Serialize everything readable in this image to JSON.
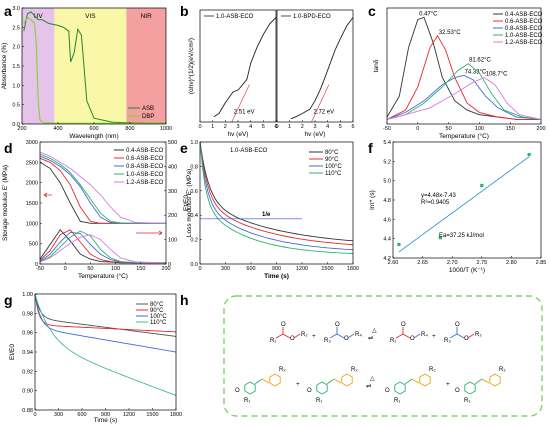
{
  "panel_labels": [
    "a",
    "b",
    "c",
    "d",
    "e",
    "f",
    "g",
    "h"
  ],
  "chart_data": [
    {
      "panel": "a",
      "type": "line",
      "xlabel": "Wavelength (nm)",
      "ylabel": "Absorbance (%)",
      "xlim": [
        200,
        1000
      ],
      "ylim": [
        0,
        3.0
      ],
      "x_ticks": [
        200,
        400,
        600,
        800,
        1000
      ],
      "y_ticks": [
        0.0,
        0.5,
        1.0,
        1.5,
        2.0,
        2.5,
        3.0
      ],
      "regions": [
        {
          "label": "UV",
          "from": 200,
          "to": 380,
          "color": "#e5c3ea"
        },
        {
          "label": "VIS",
          "from": 380,
          "to": 780,
          "color": "#fbf7a9"
        },
        {
          "label": "NIR",
          "from": 780,
          "to": 1000,
          "color": "#f5a0a0"
        }
      ],
      "legend_position": "bottom-right",
      "series": [
        {
          "name": "ASB",
          "color": "#1f8a2c",
          "x": [
            210,
            230,
            250,
            270,
            290,
            310,
            330,
            350,
            370,
            400,
            430,
            460,
            470,
            490,
            510,
            530,
            560,
            600,
            700,
            800,
            900,
            1000
          ],
          "y": [
            2.4,
            2.85,
            2.9,
            2.8,
            2.7,
            2.7,
            2.65,
            2.6,
            2.58,
            2.55,
            2.5,
            2.4,
            1.6,
            1.85,
            2.45,
            2.3,
            0.6,
            0.15,
            0.05,
            0.03,
            0.02,
            0.02
          ]
        },
        {
          "name": "DBP",
          "color": "#7ed321",
          "x": [
            210,
            230,
            250,
            270,
            280,
            290,
            300,
            320,
            400,
            600,
            800,
            1000
          ],
          "y": [
            2.6,
            2.75,
            2.7,
            2.6,
            2.0,
            0.6,
            0.1,
            0.03,
            0.02,
            0.02,
            0.02,
            0.02
          ]
        }
      ]
    },
    {
      "panel": "b",
      "type": "line",
      "xlabel": "hv (eV)",
      "ylabel": "(ɑhν)^(1/2)(eV/cm²)",
      "xlim": [
        0,
        6
      ],
      "x_ticks": [
        0,
        1,
        2,
        3,
        4,
        5,
        6
      ],
      "subplots": [
        {
          "title": "1.0-ASB-ECO",
          "annotation": "2.51 eV",
          "intercept": 2.51,
          "x": [
            1.1,
            1.5,
            2.0,
            2.6,
            3.0,
            3.3,
            3.7,
            4.0,
            4.5,
            5.0,
            5.5,
            6.0
          ],
          "y": [
            0.05,
            0.08,
            0.18,
            0.28,
            0.3,
            0.34,
            0.4,
            0.55,
            0.7,
            0.82,
            0.92,
            0.98
          ]
        },
        {
          "title": "1.0-BPD-ECO",
          "annotation": "2.72 eV",
          "intercept": 2.72,
          "x": [
            1.1,
            1.5,
            2.0,
            2.6,
            3.0,
            3.4,
            3.8,
            4.2,
            4.6,
            5.0,
            5.5,
            6.0
          ],
          "y": [
            0.03,
            0.05,
            0.08,
            0.12,
            0.2,
            0.3,
            0.42,
            0.55,
            0.68,
            0.78,
            0.9,
            0.98
          ]
        }
      ]
    },
    {
      "panel": "c",
      "type": "line",
      "xlabel": "Temperature (°C)",
      "ylabel": "tanδ",
      "xlim": [
        -50,
        200
      ],
      "x_ticks": [
        -50,
        0,
        50,
        100,
        150,
        200
      ],
      "legend_position": "top-right",
      "series": [
        {
          "name": "0.4-ASB-ECO",
          "color": "#333333",
          "peak_label": "0.47°C",
          "peak_x": 0.47,
          "x": [
            -50,
            -30,
            -15,
            0,
            10,
            25,
            40,
            60,
            80,
            100,
            130,
            160,
            200
          ],
          "y": [
            0.03,
            0.12,
            0.33,
            0.45,
            0.46,
            0.35,
            0.2,
            0.1,
            0.06,
            0.04,
            0.03,
            0.02,
            0.02
          ]
        },
        {
          "name": "0.6-ASB-ECO",
          "color": "#e8292c",
          "peak_label": "32.53°C",
          "peak_x": 32.53,
          "x": [
            -50,
            -20,
            0,
            20,
            32,
            45,
            60,
            80,
            100,
            130,
            160,
            200
          ],
          "y": [
            0.02,
            0.06,
            0.16,
            0.33,
            0.38,
            0.32,
            0.2,
            0.09,
            0.05,
            0.03,
            0.02,
            0.02
          ]
        },
        {
          "name": "0.8-ASB-ECO",
          "color": "#3b6fd9",
          "peak_label": "74.33°C",
          "peak_x": 74.33,
          "x": [
            -50,
            -20,
            10,
            40,
            60,
            75,
            90,
            110,
            130,
            160,
            200
          ],
          "y": [
            0.02,
            0.05,
            0.1,
            0.17,
            0.2,
            0.21,
            0.19,
            0.12,
            0.07,
            0.03,
            0.02
          ]
        },
        {
          "name": "1.0-ASB-ECO",
          "color": "#2fb36a",
          "peak_label": "81.62°C",
          "peak_x": 81.62,
          "x": [
            -50,
            -20,
            10,
            40,
            65,
            82,
            100,
            120,
            140,
            170,
            200
          ],
          "y": [
            0.02,
            0.04,
            0.09,
            0.16,
            0.23,
            0.26,
            0.22,
            0.13,
            0.06,
            0.03,
            0.02
          ]
        },
        {
          "name": "1.2-ASB-ECO",
          "color": "#d77be6",
          "peak_label": "108.7°C",
          "peak_x": 108.7,
          "x": [
            -50,
            -20,
            20,
            60,
            90,
            108,
            125,
            145,
            165,
            200
          ],
          "y": [
            0.02,
            0.04,
            0.07,
            0.13,
            0.18,
            0.2,
            0.17,
            0.09,
            0.04,
            0.02
          ]
        }
      ]
    },
    {
      "panel": "d",
      "type": "line",
      "xlabel": "Temperature (°C)",
      "ylabel": "Storage modulus E' (MPa)",
      "ylabel_right": "Loss modulus E'' (MPa)",
      "xlim": [
        -50,
        200
      ],
      "x_ticks": [
        -50,
        0,
        50,
        100,
        150,
        200
      ],
      "ylim": [
        0,
        3000
      ],
      "y_ticks": [
        0,
        500,
        1000,
        1500,
        2000,
        2500,
        3000
      ],
      "ylim_right": [
        0,
        500
      ],
      "y_ticks_right": [
        0,
        100,
        200,
        300,
        400,
        500
      ],
      "legend_position": "top-right",
      "series_names": [
        "0.4-ASB-ECO",
        "0.6-ASB-ECO",
        "0.8-ASB-ECO",
        "1.0-ASB-ECO",
        "1.2-ASB-ECO"
      ],
      "series_colors": [
        "#333333",
        "#e8292c",
        "#3b6fd9",
        "#2fb36a",
        "#d77be6"
      ],
      "storage": {
        "x": [
          -50,
          -30,
          -10,
          10,
          30,
          50,
          70,
          90,
          110,
          140,
          200
        ],
        "series": [
          [
            2500,
            2350,
            2000,
            1500,
            1050,
            1000,
            1000,
            1000,
            1000,
            1000,
            1000
          ],
          [
            2600,
            2500,
            2300,
            1950,
            1400,
            1050,
            1000,
            1000,
            1000,
            1000,
            1000
          ],
          [
            2650,
            2550,
            2400,
            2200,
            1900,
            1500,
            1150,
            1020,
            1000,
            1000,
            1000
          ],
          [
            2700,
            2600,
            2450,
            2250,
            1950,
            1600,
            1250,
            1050,
            1010,
            1000,
            1000
          ],
          [
            2750,
            2650,
            2500,
            2350,
            2150,
            1950,
            1700,
            1400,
            1150,
            1020,
            1000
          ]
        ]
      },
      "loss": {
        "x": [
          -50,
          -30,
          -10,
          10,
          30,
          50,
          70,
          90,
          110,
          140,
          200
        ],
        "series": [
          [
            20,
            80,
            140,
            95,
            40,
            20,
            10,
            8,
            5,
            5,
            5
          ],
          [
            15,
            55,
            120,
            140,
            90,
            40,
            18,
            10,
            6,
            5,
            5
          ],
          [
            12,
            40,
            90,
            130,
            125,
            80,
            40,
            18,
            8,
            5,
            5
          ],
          [
            10,
            30,
            70,
            110,
            135,
            115,
            60,
            25,
            10,
            6,
            5
          ],
          [
            8,
            25,
            55,
            85,
            110,
            120,
            100,
            60,
            25,
            8,
            5
          ]
        ]
      }
    },
    {
      "panel": "e",
      "type": "line",
      "title": "1.0-ASB-ECO",
      "xlabel": "Time (s)",
      "ylabel": "Et/E0",
      "xlim": [
        0,
        1800
      ],
      "x_ticks": [
        0,
        300,
        600,
        900,
        1200,
        1500,
        1800
      ],
      "ylim": [
        0.0,
        1.0
      ],
      "y_ticks": [
        0.0,
        0.2,
        0.4,
        0.6,
        0.8,
        1.0
      ],
      "reference_line": {
        "label": "1/e",
        "y": 0.37,
        "x_to": 1200
      },
      "legend_position": "top-right",
      "series": [
        {
          "name": "80°C",
          "color": "#333333",
          "tau": 400,
          "inf": 0.14
        },
        {
          "name": "90°C",
          "color": "#e8292c",
          "tau": 350,
          "inf": 0.12
        },
        {
          "name": "100°C",
          "color": "#3b6fd9",
          "tau": 300,
          "inf": 0.09
        },
        {
          "name": "110°C",
          "color": "#2fb36a",
          "tau": 250,
          "inf": 0.07
        }
      ]
    },
    {
      "panel": "f",
      "type": "scatter",
      "xlabel": "1000/T (K⁻¹)",
      "ylabel": "lnτ* (s)",
      "xlim": [
        2.6,
        2.85
      ],
      "x_ticks": [
        2.6,
        2.65,
        2.7,
        2.75,
        2.8,
        2.85
      ],
      "ylim": [
        4.2,
        5.4
      ],
      "y_ticks": [
        4.2,
        4.4,
        4.6,
        4.8,
        5.0,
        5.2,
        5.4
      ],
      "points": {
        "x": [
          2.61,
          2.68,
          2.75,
          2.83
        ],
        "y": [
          4.34,
          4.41,
          4.95,
          5.27
        ]
      },
      "fit": {
        "slope": 4.48,
        "intercept": -7.43
      },
      "annotations": [
        "y=4.48x-7.43",
        "R²=0.9405",
        "Ea=37.25 kJ/mol"
      ],
      "color": "#2fb36a",
      "fit_color": "#1a90c9"
    },
    {
      "panel": "g",
      "type": "line",
      "xlabel": "Time (s)",
      "ylabel": "Et/E0",
      "xlim": [
        0,
        1800
      ],
      "x_ticks": [
        0,
        300,
        600,
        900,
        1200,
        1500,
        1800
      ],
      "ylim": [
        0.88,
        1.0
      ],
      "y_ticks": [
        0.88,
        0.9,
        0.92,
        0.94,
        0.96,
        0.98,
        1.0
      ],
      "legend_position": "top-right",
      "series": [
        {
          "name": "80°C",
          "color": "#555555",
          "tau": 60,
          "drop": 0.025,
          "slope": 1.05e-05
        },
        {
          "name": "90°C",
          "color": "#e8292c",
          "tau": 50,
          "drop": 0.032,
          "slope": 4e-06
        },
        {
          "name": "100°C",
          "color": "#3b6fd9",
          "tau": 70,
          "drop": 0.035,
          "slope": 1.39e-05
        },
        {
          "name": "110°C",
          "color": "#3fbf8f",
          "tau": 200,
          "drop": 0.05,
          "slope": 3.05e-05
        }
      ]
    }
  ],
  "scheme_h": {
    "equilibrium_glyph": "⇌",
    "triangle_glyph": "△",
    "row1_subs": [
      "R₁",
      "R₂",
      "R₃",
      "R₄"
    ],
    "row2_subs": [
      "R₁",
      "R₂"
    ],
    "colors": {
      "ester_a": "#e8292c",
      "ester_b": "#3b6fd9",
      "green": "#2fb36a",
      "orange": "#f0a30a",
      "border": "#7ed36f"
    }
  }
}
